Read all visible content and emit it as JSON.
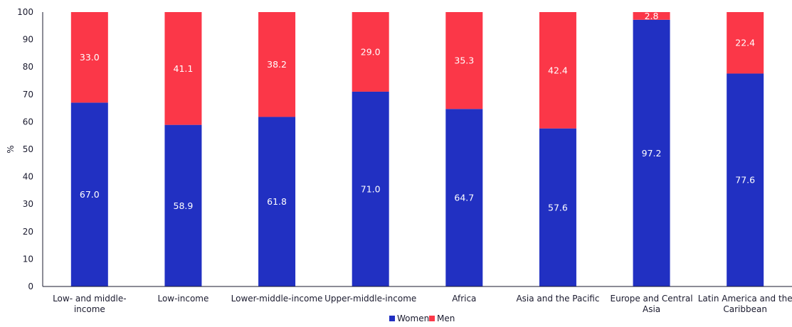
{
  "chart_data": {
    "type": "bar",
    "stacked": true,
    "title": "",
    "xlabel": "",
    "ylabel": "%",
    "ylim": [
      0,
      100
    ],
    "yticks": [
      0,
      10,
      20,
      30,
      40,
      50,
      60,
      70,
      80,
      90,
      100
    ],
    "grid": false,
    "legend_position": "bottom",
    "categories": [
      [
        "Low- and middle-",
        "income"
      ],
      [
        "Low-income"
      ],
      [
        "Lower-middle-income"
      ],
      [
        "Upper-middle-income"
      ],
      [
        "Africa"
      ],
      [
        "Asia and the Pacific"
      ],
      [
        "Europe and Central",
        "Asia"
      ],
      [
        "Latin America and the",
        "Caribbean"
      ]
    ],
    "series": [
      {
        "name": "Women",
        "color": "#2130c2",
        "values": [
          67.0,
          58.9,
          61.8,
          71.0,
          64.7,
          57.6,
          97.2,
          77.6
        ],
        "labels": [
          "67.0",
          "58.9",
          "61.8",
          "71.0",
          "64.7",
          "57.6",
          "97.2",
          "77.6"
        ]
      },
      {
        "name": "Men",
        "color": "#fb3748",
        "values": [
          33.0,
          41.1,
          38.2,
          29.0,
          35.3,
          42.4,
          2.8,
          22.4
        ],
        "labels": [
          "33.0",
          "41.1",
          "38.2",
          "29.0",
          "35.3",
          "42.4",
          "2.8",
          "22.4"
        ]
      }
    ]
  }
}
